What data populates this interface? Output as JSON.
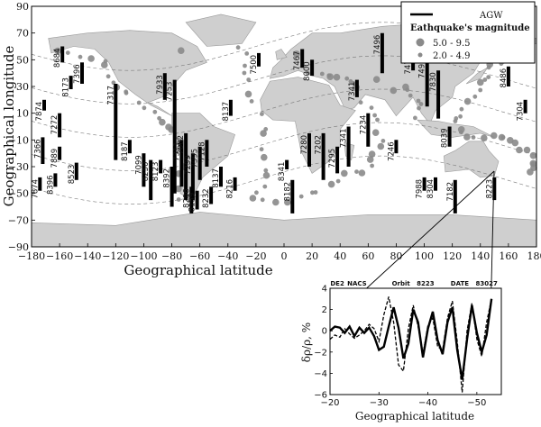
{
  "chart_data": [
    {
      "type": "scatter",
      "xlabel": "Geographical latitude",
      "ylabel": "Geographical longitude",
      "xlim": [
        -180,
        180
      ],
      "ylim": [
        -90,
        90
      ],
      "xticks": [
        -180,
        -160,
        -140,
        -120,
        -100,
        -80,
        -60,
        -40,
        -20,
        0,
        20,
        40,
        60,
        80,
        100,
        120,
        140,
        160,
        180
      ],
      "yticks": [
        -90,
        -70,
        -50,
        -30,
        -10,
        10,
        30,
        50,
        70,
        90
      ],
      "xtick_labels": [
        "−180",
        "−160",
        "−140",
        "−120",
        "−100",
        "−80",
        "−60",
        "−40",
        "−20",
        "0",
        "20",
        "40",
        "60",
        "80",
        "100",
        "120",
        "140",
        "160",
        "180"
      ],
      "ytick_labels": [
        "−90",
        "−70",
        "−50",
        "−30",
        "−10",
        "10",
        "30",
        "50",
        "70",
        "90"
      ],
      "legend": {
        "placement": "top-right",
        "line_label": "AGW",
        "title": "Eathquake's magnitude",
        "entries": [
          "5.0 - 9.5",
          "2.0 - 4.9"
        ]
      },
      "colors": {
        "land": "#cfcfcf",
        "ocean": "#ffffff",
        "quake": "#8a8a8a",
        "agw": "#000000"
      },
      "agw_segments": [
        {
          "id": "7874",
          "lon": -174,
          "lat1": -38,
          "lat2": -48
        },
        {
          "id": "7874",
          "lon": -171,
          "lat1": 20,
          "lat2": 12
        },
        {
          "id": "7366",
          "lon": -172,
          "lat1": -8,
          "lat2": -28
        },
        {
          "id": "8396",
          "lon": -163,
          "lat1": -35,
          "lat2": -45
        },
        {
          "id": "7889",
          "lon": -160,
          "lat1": -15,
          "lat2": -25
        },
        {
          "id": "7272",
          "lon": -160,
          "lat1": 10,
          "lat2": -8
        },
        {
          "id": "8684",
          "lon": -158,
          "lat1": 60,
          "lat2": 48
        },
        {
          "id": "8173",
          "lon": -152,
          "lat1": 38,
          "lat2": 28
        },
        {
          "id": "7396",
          "lon": -144,
          "lat1": 48,
          "lat2": 32
        },
        {
          "id": "8523",
          "lon": -148,
          "lat1": -27,
          "lat2": -40
        },
        {
          "id": "7317",
          "lon": -120,
          "lat1": 32,
          "lat2": -25
        },
        {
          "id": "8187",
          "lon": -110,
          "lat1": -10,
          "lat2": -20
        },
        {
          "id": "7099",
          "lon": -100,
          "lat1": -20,
          "lat2": -45
        },
        {
          "id": "8250",
          "lon": -95,
          "lat1": -25,
          "lat2": -55
        },
        {
          "id": "8123",
          "lon": -88,
          "lat1": -25,
          "lat2": -35
        },
        {
          "id": "7933",
          "lon": -85,
          "lat1": 40,
          "lat2": 20
        },
        {
          "id": "7253",
          "lon": -78,
          "lat1": 35,
          "lat2": -50
        },
        {
          "id": "7311",
          "lon": -73,
          "lat1": -10,
          "lat2": -45
        },
        {
          "id": "7082",
          "lon": -70,
          "lat1": -5,
          "lat2": -55
        },
        {
          "id": "7299",
          "lon": -65,
          "lat1": -20,
          "lat2": -55
        },
        {
          "id": "8392",
          "lon": -80,
          "lat1": -30,
          "lat2": -60
        },
        {
          "id": "8296",
          "lon": -66,
          "lat1": -45,
          "lat2": -65
        },
        {
          "id": "8159",
          "lon": -62,
          "lat1": -48,
          "lat2": -62
        },
        {
          "id": "7995",
          "lon": -60,
          "lat1": -15,
          "lat2": -40
        },
        {
          "id": "7128",
          "lon": -55,
          "lat1": -10,
          "lat2": -30
        },
        {
          "id": "8232",
          "lon": -52,
          "lat1": -45,
          "lat2": -58
        },
        {
          "id": "8137",
          "lon": -45,
          "lat1": -30,
          "lat2": -45
        },
        {
          "id": "8137",
          "lon": -38,
          "lat1": 20,
          "lat2": 8
        },
        {
          "id": "8216",
          "lon": -35,
          "lat1": -38,
          "lat2": -48
        },
        {
          "id": "7500",
          "lon": -18,
          "lat1": 55,
          "lat2": 45
        },
        {
          "id": "8341",
          "lon": 2,
          "lat1": -25,
          "lat2": -32
        },
        {
          "id": "8182",
          "lon": 6,
          "lat1": -40,
          "lat2": -65
        },
        {
          "id": "7467",
          "lon": 13,
          "lat1": 58,
          "lat2": 44
        },
        {
          "id": "8000",
          "lon": 20,
          "lat1": 50,
          "lat2": 38
        },
        {
          "id": "7280",
          "lon": 18,
          "lat1": -5,
          "lat2": -30
        },
        {
          "id": "7202",
          "lon": 28,
          "lat1": -5,
          "lat2": -40
        },
        {
          "id": "7295",
          "lon": 38,
          "lat1": -15,
          "lat2": -35
        },
        {
          "id": "7341",
          "lon": 46,
          "lat1": 0,
          "lat2": -30
        },
        {
          "id": "7341",
          "lon": 52,
          "lat1": 35,
          "lat2": 22
        },
        {
          "id": "7234",
          "lon": 60,
          "lat1": 10,
          "lat2": -15
        },
        {
          "id": "7496",
          "lon": 70,
          "lat1": 70,
          "lat2": 40
        },
        {
          "id": "7246",
          "lon": 80,
          "lat1": -10,
          "lat2": -20
        },
        {
          "id": "7479",
          "lon": 92,
          "lat1": 55,
          "lat2": 42
        },
        {
          "id": "7494",
          "lon": 102,
          "lat1": 52,
          "lat2": 15
        },
        {
          "id": "7830",
          "lon": 110,
          "lat1": 42,
          "lat2": 6
        },
        {
          "id": "8039",
          "lon": 118,
          "lat1": 0,
          "lat2": -15
        },
        {
          "id": "7988",
          "lon": 100,
          "lat1": -38,
          "lat2": -48
        },
        {
          "id": "8304",
          "lon": 108,
          "lat1": -38,
          "lat2": -48
        },
        {
          "id": "7182",
          "lon": 122,
          "lat1": -40,
          "lat2": -65
        },
        {
          "id": "8223",
          "lon": 150,
          "lat1": -38,
          "lat2": -55
        },
        {
          "id": "8486",
          "lon": 160,
          "lat1": 45,
          "lat2": 30
        },
        {
          "id": "7304",
          "lon": 172,
          "lat1": 20,
          "lat2": 10
        }
      ]
    },
    {
      "type": "line",
      "xlabel": "Geographical latitude",
      "ylabel": "δρ/ρ, %",
      "xlim": [
        -20,
        -55
      ],
      "ylim": [
        -6,
        4
      ],
      "xticks": [
        -20,
        -30,
        -40,
        -50
      ],
      "yticks": [
        -6,
        -4,
        -2,
        0,
        2,
        4
      ],
      "xtick_labels": [
        "−20",
        "−30",
        "−40",
        "−50"
      ],
      "ytick_labels": [
        "−6",
        "−4",
        "−2",
        "0",
        "2",
        "4"
      ],
      "annotations": [
        "DE2",
        "NACS",
        "Orbit",
        "8223",
        "DATE",
        "83027"
      ],
      "series": [
        {
          "style": "solid",
          "x": [
            -20,
            -21,
            -22,
            -23,
            -24,
            -25,
            -26,
            -27,
            -28,
            -29,
            -30,
            -31,
            -32,
            -33,
            -34,
            -35,
            -36,
            -37,
            -38,
            -39,
            -40,
            -41,
            -42,
            -43,
            -44,
            -45,
            -46,
            -47,
            -48,
            -49,
            -50,
            -51,
            -52,
            -53
          ],
          "y": [
            0.0,
            0.4,
            0.3,
            -0.2,
            0.4,
            -0.5,
            0.3,
            -0.2,
            0.3,
            -0.5,
            -1.8,
            -1.5,
            0.4,
            2.2,
            0.3,
            -2.6,
            -1.2,
            2.0,
            0.8,
            -2.5,
            0.2,
            1.8,
            -0.9,
            -2.2,
            0.8,
            2.2,
            -1.8,
            -4.6,
            -0.8,
            2.4,
            -0.2,
            -2.0,
            -0.4,
            3.0
          ]
        },
        {
          "style": "dashed",
          "x": [
            -20,
            -21,
            -22,
            -23,
            -24,
            -25,
            -26,
            -27,
            -28,
            -29,
            -30,
            -31,
            -32,
            -33,
            -34,
            -35,
            -36,
            -37,
            -38,
            -39,
            -40,
            -41,
            -42,
            -43,
            -44,
            -45,
            -46,
            -47,
            -48,
            -49,
            -50,
            -51,
            -52,
            -53
          ],
          "y": [
            -0.8,
            -0.4,
            -0.6,
            0.2,
            -0.3,
            -0.7,
            -0.4,
            0.0,
            0.6,
            0.2,
            -1.0,
            1.5,
            3.2,
            0.8,
            -3.2,
            -3.8,
            0.2,
            2.4,
            0.4,
            -2.2,
            0.5,
            1.2,
            -1.5,
            -1.8,
            1.2,
            2.8,
            -1.0,
            -5.8,
            0.0,
            2.6,
            -0.8,
            -2.4,
            0.8,
            3.0
          ]
        }
      ]
    }
  ]
}
